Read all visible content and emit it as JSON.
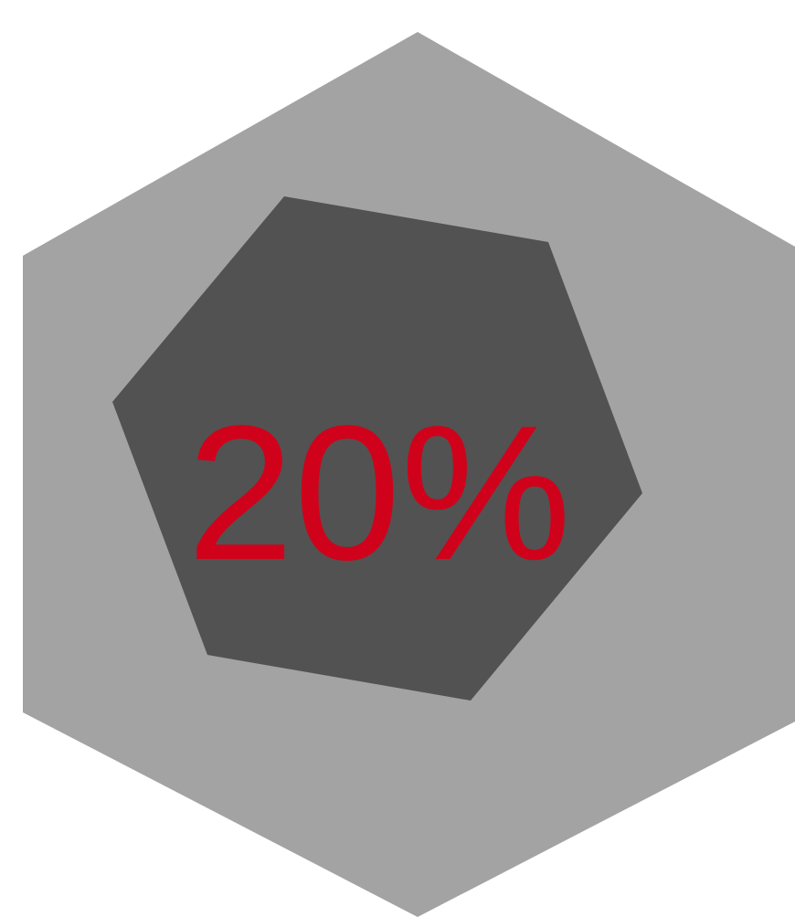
{
  "graphic": {
    "value_label": "20%",
    "colors": {
      "outer_hexagon": "#a3a3a3",
      "inner_hexagon": "#525252",
      "value_text": "#d0021b",
      "background": "#ffffff"
    }
  }
}
